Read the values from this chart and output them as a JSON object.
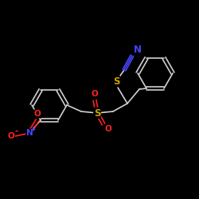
{
  "background_color": "#000000",
  "bond_color": "#d0d0d0",
  "atom_colors": {
    "S": "#c8a000",
    "N": "#4444ff",
    "O": "#ff2222",
    "C": "#d0d0d0",
    "default": "#d0d0d0"
  },
  "figsize": [
    2.5,
    2.5
  ],
  "dpi": 100,
  "lw": 1.2,
  "fontsize": 7.5
}
